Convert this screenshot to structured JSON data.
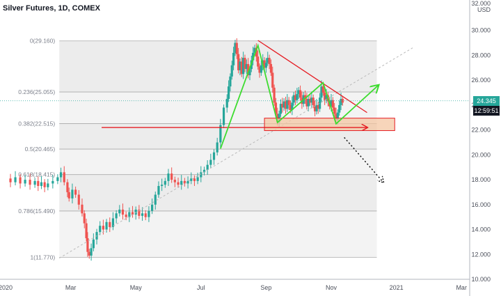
{
  "header": {
    "title": "Silver Futures, 1D, COMEX"
  },
  "axis": {
    "currency": "USD",
    "top_label": "32.000"
  },
  "badges": {
    "price": "24.345",
    "countdown": "12:59:51"
  },
  "colors": {
    "up": "#26a69a",
    "down": "#ef5350",
    "fib_band": "#ececec",
    "zone": "#f4c7a3",
    "red_line": "#e51c23",
    "green_line": "#3ddc2f",
    "price_badge": "#26a69a",
    "countdown_badge": "#131722"
  },
  "chart_data": {
    "type": "candlestick",
    "title": "Silver Futures, 1D, COMEX",
    "ylabel": "USD",
    "ylim": [
      10,
      32
    ],
    "y_ticks": [
      "10.000",
      "12.000",
      "14.000",
      "16.000",
      "18.000",
      "20.000",
      "22.000",
      "24.000",
      "26.000",
      "28.000",
      "30.000",
      "32.000"
    ],
    "x_ticks": [
      {
        "label": "2020",
        "t": 0
      },
      {
        "label": "Mar",
        "t": 2
      },
      {
        "label": "May",
        "t": 4
      },
      {
        "label": "Jul",
        "t": 6
      },
      {
        "label": "Sep",
        "t": 8
      },
      {
        "label": "Nov",
        "t": 10
      },
      {
        "label": "2021",
        "t": 12
      },
      {
        "label": "Mar",
        "t": 14
      }
    ],
    "fib_levels": [
      {
        "label": "0(29.160)",
        "value": 29.16
      },
      {
        "label": "0.236(25.055)",
        "value": 25.055
      },
      {
        "label": "0.382(22.515)",
        "value": 22.515
      },
      {
        "label": "0.5(20.465)",
        "value": 20.465
      },
      {
        "label": "0.618(18.415)",
        "value": 18.415
      },
      {
        "label": "0.786(15.490)",
        "value": 15.49
      },
      {
        "label": "1(11.770)",
        "value": 11.77
      }
    ],
    "fib_range_t": [
      1.65,
      11.4
    ],
    "last_price": 24.345,
    "series_close": [
      [
        0.0,
        18.1
      ],
      [
        0.15,
        17.8
      ],
      [
        0.3,
        18.2
      ],
      [
        0.45,
        17.7
      ],
      [
        0.6,
        18.0
      ],
      [
        0.75,
        17.6
      ],
      [
        0.9,
        17.9
      ],
      [
        1.0,
        17.5
      ],
      [
        1.1,
        17.8
      ],
      [
        1.2,
        17.4
      ],
      [
        1.3,
        17.7
      ],
      [
        1.45,
        17.9
      ],
      [
        1.6,
        18.2
      ],
      [
        1.7,
        18.6
      ],
      [
        1.8,
        17.8
      ],
      [
        1.9,
        17.0
      ],
      [
        1.95,
        16.5
      ],
      [
        2.05,
        17.2
      ],
      [
        2.15,
        16.8
      ],
      [
        2.25,
        16.0
      ],
      [
        2.35,
        15.3
      ],
      [
        2.42,
        14.5
      ],
      [
        2.48,
        13.3
      ],
      [
        2.52,
        12.2
      ],
      [
        2.57,
        11.9
      ],
      [
        2.63,
        12.5
      ],
      [
        2.7,
        13.2
      ],
      [
        2.8,
        13.8
      ],
      [
        2.9,
        14.3
      ],
      [
        3.0,
        14.0
      ],
      [
        3.1,
        14.6
      ],
      [
        3.2,
        14.2
      ],
      [
        3.3,
        14.9
      ],
      [
        3.4,
        15.3
      ],
      [
        3.5,
        15.6
      ],
      [
        3.6,
        15.2
      ],
      [
        3.7,
        15.0
      ],
      [
        3.8,
        15.4
      ],
      [
        3.9,
        15.2
      ],
      [
        4.0,
        15.6
      ],
      [
        4.1,
        15.1
      ],
      [
        4.2,
        15.3
      ],
      [
        4.3,
        15.0
      ],
      [
        4.4,
        15.5
      ],
      [
        4.5,
        16.0
      ],
      [
        4.6,
        16.8
      ],
      [
        4.7,
        17.5
      ],
      [
        4.8,
        17.6
      ],
      [
        4.9,
        17.9
      ],
      [
        5.0,
        18.5
      ],
      [
        5.1,
        18.0
      ],
      [
        5.2,
        17.8
      ],
      [
        5.3,
        17.6
      ],
      [
        5.4,
        17.9
      ],
      [
        5.5,
        17.7
      ],
      [
        5.6,
        17.9
      ],
      [
        5.7,
        18.1
      ],
      [
        5.8,
        17.9
      ],
      [
        5.9,
        18.2
      ],
      [
        6.0,
        18.6
      ],
      [
        6.1,
        18.8
      ],
      [
        6.2,
        19.2
      ],
      [
        6.3,
        19.6
      ],
      [
        6.4,
        20.2
      ],
      [
        6.5,
        21.0
      ],
      [
        6.6,
        22.4
      ],
      [
        6.7,
        23.8
      ],
      [
        6.8,
        24.5
      ],
      [
        6.85,
        25.5
      ],
      [
        6.9,
        26.3
      ],
      [
        6.95,
        27.2
      ],
      [
        7.0,
        28.2
      ],
      [
        7.05,
        29.0
      ],
      [
        7.1,
        28.1
      ],
      [
        7.15,
        26.8
      ],
      [
        7.2,
        27.5
      ],
      [
        7.25,
        26.5
      ],
      [
        7.3,
        27.8
      ],
      [
        7.35,
        26.9
      ],
      [
        7.4,
        27.3
      ],
      [
        7.45,
        26.4
      ],
      [
        7.5,
        26.9
      ],
      [
        7.55,
        27.6
      ],
      [
        7.6,
        28.2
      ],
      [
        7.65,
        28.6
      ],
      [
        7.7,
        27.9
      ],
      [
        7.75,
        27.1
      ],
      [
        7.8,
        26.6
      ],
      [
        7.85,
        27.2
      ],
      [
        7.9,
        27.6
      ],
      [
        7.95,
        27.0
      ],
      [
        8.0,
        27.4
      ],
      [
        8.05,
        27.8
      ],
      [
        8.1,
        27.3
      ],
      [
        8.15,
        26.6
      ],
      [
        8.2,
        25.4
      ],
      [
        8.25,
        24.2
      ],
      [
        8.3,
        23.3
      ],
      [
        8.35,
        22.6
      ],
      [
        8.4,
        23.3
      ],
      [
        8.45,
        24.1
      ],
      [
        8.5,
        23.8
      ],
      [
        8.55,
        24.3
      ],
      [
        8.6,
        23.7
      ],
      [
        8.65,
        24.4
      ],
      [
        8.7,
        24.0
      ],
      [
        8.75,
        23.6
      ],
      [
        8.8,
        24.2
      ],
      [
        8.85,
        24.8
      ],
      [
        8.9,
        24.4
      ],
      [
        8.95,
        24.9
      ],
      [
        9.0,
        25.2
      ],
      [
        9.05,
        24.6
      ],
      [
        9.1,
        24.1
      ],
      [
        9.15,
        24.8
      ],
      [
        9.2,
        24.5
      ],
      [
        9.25,
        23.9
      ],
      [
        9.3,
        24.5
      ],
      [
        9.35,
        24.2
      ],
      [
        9.4,
        24.6
      ],
      [
        9.45,
        24.0
      ],
      [
        9.5,
        23.5
      ],
      [
        9.55,
        24.0
      ],
      [
        9.6,
        23.7
      ],
      [
        9.65,
        24.6
      ],
      [
        9.7,
        25.5
      ],
      [
        9.75,
        25.0
      ],
      [
        9.8,
        24.4
      ],
      [
        9.85,
        24.8
      ],
      [
        9.9,
        24.3
      ],
      [
        9.95,
        23.9
      ],
      [
        10.0,
        24.4
      ],
      [
        10.05,
        23.8
      ],
      [
        10.1,
        23.3
      ],
      [
        10.15,
        22.8
      ],
      [
        10.2,
        23.4
      ],
      [
        10.25,
        24.0
      ],
      [
        10.3,
        24.5
      ],
      [
        10.35,
        24.2
      ]
    ],
    "annotations": {
      "dotted_trend": [
        [
          1.65,
          11.7
        ],
        [
          12.5,
          28.6
        ]
      ],
      "descending_resistance": [
        [
          7.75,
          29.2
        ],
        [
          11.1,
          23.4
        ]
      ],
      "support_line": [
        [
          2.95,
          22.2
        ],
        [
          11.1,
          22.2
        ]
      ],
      "support_zone": {
        "t": [
          7.95,
          11.95
        ],
        "y": [
          21.95,
          22.95
        ]
      },
      "zigzag": [
        [
          6.6,
          20.5
        ],
        [
          7.75,
          28.8
        ],
        [
          8.35,
          22.6
        ],
        [
          9.75,
          25.8
        ],
        [
          10.15,
          22.5
        ],
        [
          11.45,
          25.6
        ]
      ],
      "projection": [
        [
          10.4,
          21.4
        ],
        [
          11.6,
          17.8
        ]
      ]
    }
  }
}
